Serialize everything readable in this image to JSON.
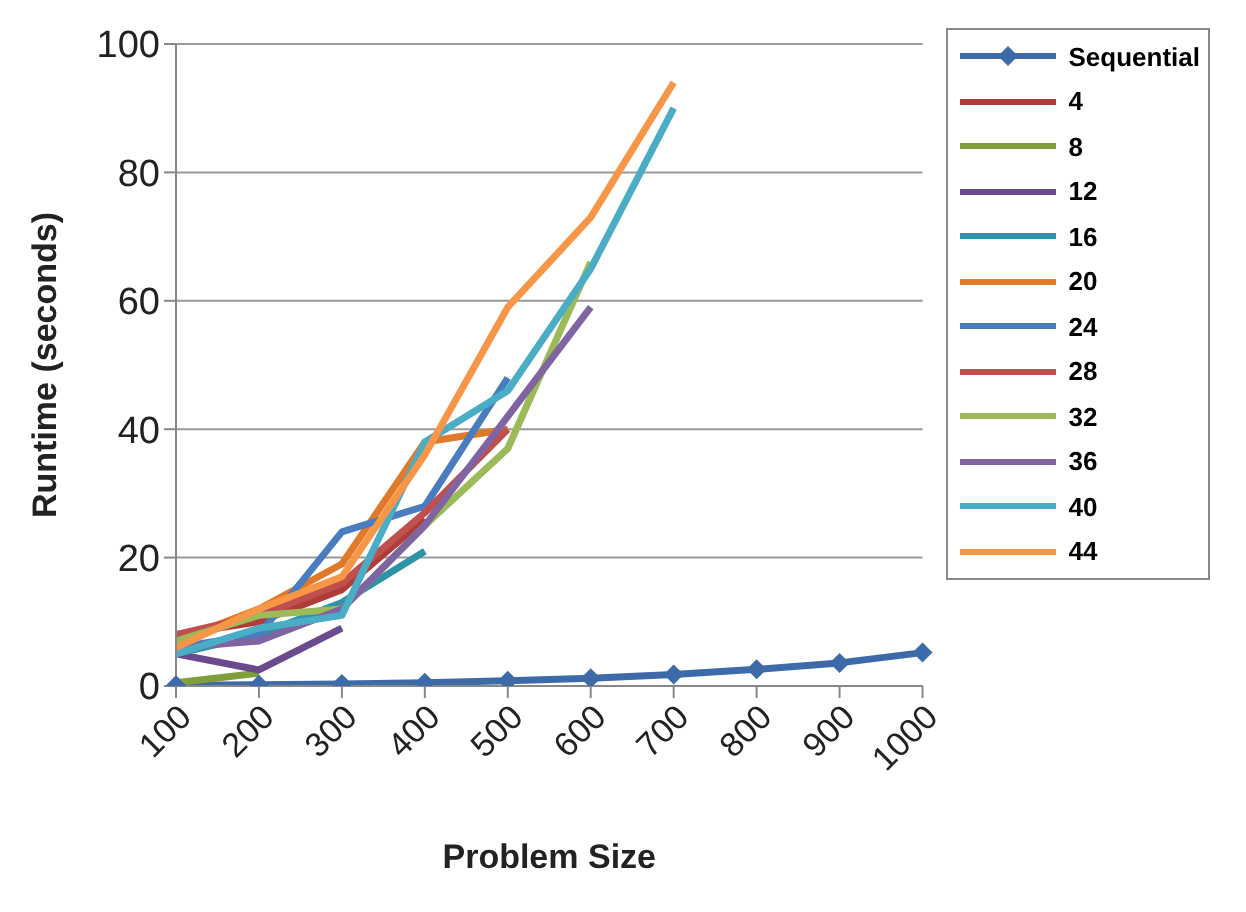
{
  "chart_data": {
    "type": "line",
    "xlabel": "Problem Size",
    "ylabel": "Runtime (seconds)",
    "categories": [
      "100",
      "200",
      "300",
      "400",
      "500",
      "600",
      "700",
      "800",
      "900",
      "1000"
    ],
    "ylim": [
      0,
      100
    ],
    "yticks": [
      0,
      20,
      40,
      60,
      80,
      100
    ],
    "grid": "y",
    "legend": "top right",
    "marker": "none",
    "series": [
      {
        "name": "Sequential",
        "color": "#3d6aa8",
        "marker": "diamond",
        "values": [
          0.1,
          0.2,
          0.3,
          0.5,
          0.8,
          1.2,
          1.8,
          2.6,
          3.6,
          5.2
        ]
      },
      {
        "name": "4",
        "color": "#b03c3a",
        "values": [
          8,
          10,
          15,
          26,
          null,
          null,
          null,
          null,
          null,
          null
        ]
      },
      {
        "name": "8",
        "color": "#7f9f3a",
        "values": [
          0.5,
          2,
          null,
          null,
          null,
          null,
          null,
          null,
          null,
          null
        ]
      },
      {
        "name": "12",
        "color": "#6a4a8c",
        "values": [
          5,
          2.5,
          9,
          null,
          null,
          null,
          null,
          null,
          null,
          null
        ]
      },
      {
        "name": "16",
        "color": "#2f93a8",
        "values": [
          5,
          8,
          13,
          21,
          null,
          null,
          null,
          null,
          null,
          null
        ]
      },
      {
        "name": "20",
        "color": "#e07a2a",
        "values": [
          7,
          12,
          19,
          38,
          40,
          null,
          null,
          null,
          null,
          null
        ]
      },
      {
        "name": "24",
        "color": "#4a7cc0",
        "values": [
          6,
          8,
          24,
          28,
          48,
          null,
          null,
          null,
          null,
          null
        ]
      },
      {
        "name": "28",
        "color": "#c0504d",
        "values": [
          8,
          11,
          16,
          27,
          40,
          null,
          null,
          null,
          null,
          null
        ]
      },
      {
        "name": "32",
        "color": "#9bbb59",
        "values": [
          7,
          11,
          12,
          25,
          37,
          66,
          null,
          null,
          null,
          null
        ]
      },
      {
        "name": "36",
        "color": "#8064a2",
        "values": [
          6,
          7,
          12,
          25,
          42,
          59,
          null,
          null,
          null,
          null
        ]
      },
      {
        "name": "40",
        "color": "#4bacc6",
        "values": [
          5,
          9,
          11,
          38,
          46,
          65,
          90,
          null,
          null,
          null
        ]
      },
      {
        "name": "44",
        "color": "#f79646",
        "values": [
          6,
          12,
          17,
          36,
          59,
          73,
          94,
          null,
          null,
          null
        ]
      }
    ]
  }
}
